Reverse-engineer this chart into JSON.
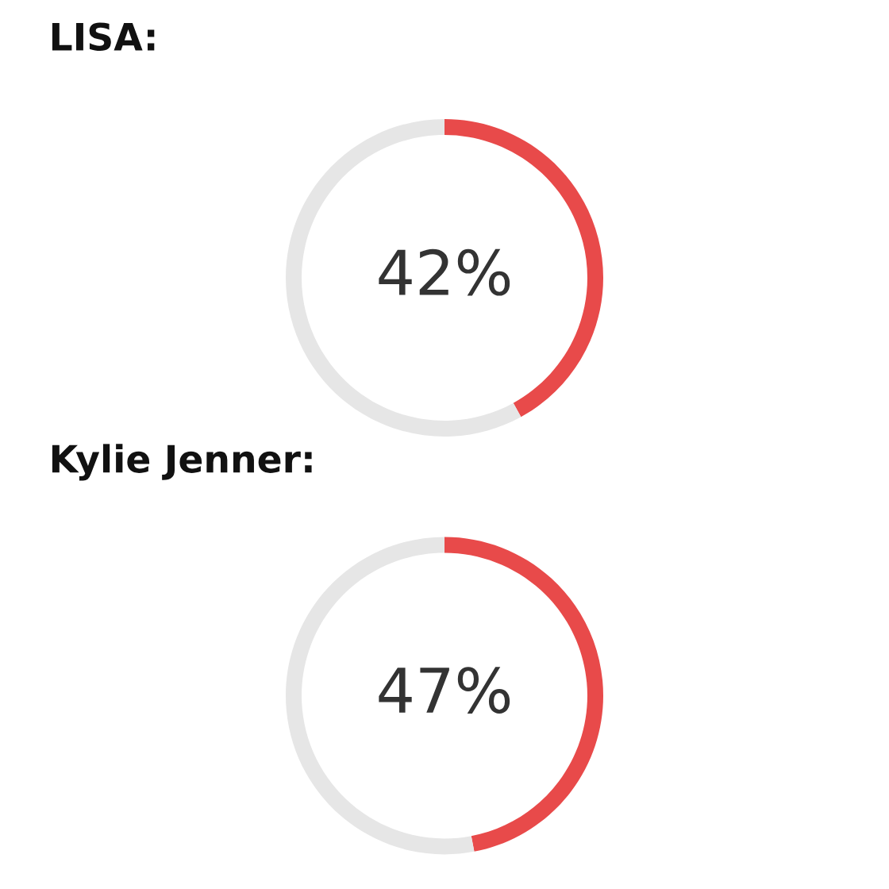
{
  "chart_data": [
    {
      "type": "donut",
      "title": "LISA:",
      "categories": [
        null,
        null
      ],
      "values": [
        42,
        58
      ],
      "colors": [
        "#e84a4a",
        "#e6e6e6"
      ],
      "value_labels": [
        "42%",
        null
      ]
    },
    {
      "type": "donut",
      "title": "Kylie Jenner:",
      "categories": [
        null,
        null
      ],
      "values": [
        47,
        53
      ],
      "colors": [
        "#e84a4a",
        "#e6e6e6"
      ],
      "value_labels": [
        "47%",
        null
      ]
    }
  ]
}
